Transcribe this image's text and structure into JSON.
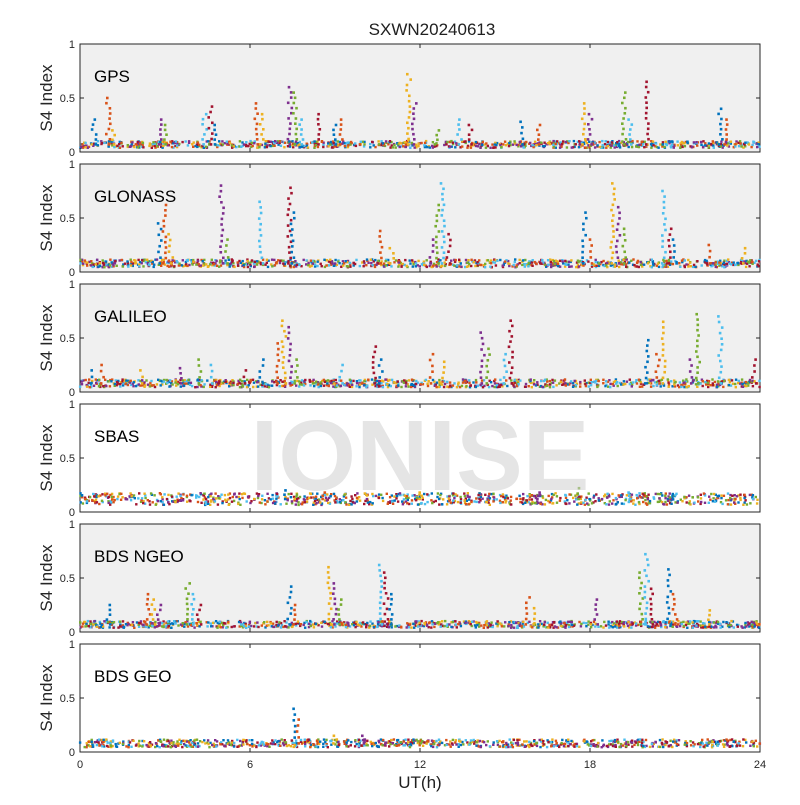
{
  "figure": {
    "title": "SXWN20240613",
    "xlabel": "UT(h)",
    "watermark": "IONISE",
    "colors": [
      "#0072BD",
      "#D95319",
      "#EDB120",
      "#7E2F8E",
      "#77AC30",
      "#4DBEEE",
      "#A2142F"
    ],
    "panel_background": "#f0f0f0"
  },
  "chart_data": [
    {
      "type": "scatter",
      "label": "GPS",
      "ylabel": "S4 Index",
      "xlim": [
        0,
        24
      ],
      "ylim": [
        0,
        1
      ],
      "xticks": [
        0,
        6,
        12,
        18,
        24
      ],
      "yticks": [
        0,
        0.5,
        1
      ],
      "ytick_labels": [
        "0",
        "0.5",
        "1"
      ],
      "background": "#f0f0f0",
      "baseline": 0.07,
      "series": [
        {
          "x": [
            0.5,
            1.0,
            1.2,
            2.8,
            3.0,
            4.4,
            4.6,
            4.8,
            6.2,
            6.4,
            7.4,
            7.6,
            7.8,
            8.4,
            9.0,
            9.2,
            11.6,
            11.8,
            12.6,
            13.4,
            13.8,
            15.6,
            16.2,
            17.8,
            18.0,
            19.2,
            19.4,
            20.0,
            22.6,
            22.8
          ],
          "y": [
            0.3,
            0.5,
            0.2,
            0.3,
            0.25,
            0.35,
            0.42,
            0.25,
            0.45,
            0.35,
            0.6,
            0.55,
            0.3,
            0.35,
            0.25,
            0.3,
            0.72,
            0.45,
            0.2,
            0.3,
            0.25,
            0.28,
            0.25,
            0.45,
            0.35,
            0.55,
            0.3,
            0.65,
            0.4,
            0.3
          ]
        }
      ]
    },
    {
      "type": "scatter",
      "label": "GLONASS",
      "ylabel": "S4 Index",
      "xlim": [
        0,
        24
      ],
      "ylim": [
        0,
        1
      ],
      "xticks": [
        0,
        6,
        12,
        18,
        24
      ],
      "yticks": [
        0,
        0.5,
        1
      ],
      "ytick_labels": [
        "0",
        "0.5",
        "1"
      ],
      "background": "#f0f0f0",
      "baseline": 0.08,
      "series": [
        {
          "x": [
            2.8,
            3.0,
            3.2,
            5.0,
            5.2,
            6.4,
            7.4,
            7.5,
            10.6,
            11.0,
            12.4,
            12.6,
            12.8,
            13.0,
            17.8,
            18.0,
            18.8,
            19.0,
            19.2,
            20.6,
            20.8,
            21.0,
            22.2,
            23.4
          ],
          "y": [
            0.45,
            0.62,
            0.35,
            0.8,
            0.3,
            0.65,
            0.78,
            0.55,
            0.38,
            0.22,
            0.3,
            0.62,
            0.82,
            0.35,
            0.55,
            0.3,
            0.82,
            0.6,
            0.4,
            0.75,
            0.4,
            0.3,
            0.25,
            0.22
          ]
        }
      ]
    },
    {
      "type": "scatter",
      "label": "GALILEO",
      "ylabel": "S4 Index",
      "xlim": [
        0,
        24
      ],
      "ylim": [
        0,
        1
      ],
      "xticks": [
        0,
        6,
        12,
        18,
        24
      ],
      "yticks": [
        0,
        0.5,
        1
      ],
      "ytick_labels": [
        "0",
        "0.5",
        "1"
      ],
      "background": "#f0f0f0",
      "baseline": 0.08,
      "series": [
        {
          "x": [
            0.4,
            0.8,
            2.2,
            3.6,
            4.2,
            4.6,
            5.8,
            6.4,
            7.0,
            7.2,
            7.4,
            7.6,
            9.2,
            10.4,
            10.6,
            12.4,
            12.8,
            14.2,
            14.4,
            15.0,
            15.2,
            20.0,
            20.4,
            20.6,
            21.6,
            21.8,
            22.6,
            23.8
          ],
          "y": [
            0.2,
            0.25,
            0.2,
            0.22,
            0.3,
            0.25,
            0.2,
            0.3,
            0.45,
            0.66,
            0.6,
            0.3,
            0.25,
            0.42,
            0.3,
            0.35,
            0.28,
            0.55,
            0.4,
            0.35,
            0.66,
            0.48,
            0.35,
            0.65,
            0.3,
            0.72,
            0.7,
            0.3
          ]
        }
      ]
    },
    {
      "type": "scatter",
      "label": "SBAS",
      "ylabel": "S4 Index",
      "xlim": [
        0,
        24
      ],
      "ylim": [
        0,
        1
      ],
      "xticks": [
        0,
        6,
        12,
        18,
        24
      ],
      "yticks": [
        0,
        0.5,
        1
      ],
      "ytick_labels": [
        "0",
        "0.5",
        "1"
      ],
      "background": "#ffffff",
      "baseline": 0.12,
      "series": [
        {
          "x": [
            7.2,
            8.6,
            12.0,
            16.2,
            17.6,
            19.4
          ],
          "y": [
            0.2,
            0.18,
            0.18,
            0.18,
            0.22,
            0.18
          ]
        }
      ]
    },
    {
      "type": "scatter",
      "label": "BDS NGEO",
      "ylabel": "S4 Index",
      "xlim": [
        0,
        24
      ],
      "ylim": [
        0,
        1
      ],
      "xticks": [
        0,
        6,
        12,
        18,
        24
      ],
      "yticks": [
        0,
        0.5,
        1
      ],
      "ytick_labels": [
        "0",
        "0.5",
        "1"
      ],
      "background": "#f0f0f0",
      "baseline": 0.07,
      "series": [
        {
          "x": [
            1.0,
            2.4,
            2.6,
            2.8,
            3.8,
            4.0,
            4.2,
            7.4,
            7.6,
            8.8,
            9.0,
            9.2,
            10.6,
            10.8,
            11.0,
            15.8,
            16.0,
            18.2,
            19.8,
            20.0,
            20.2,
            20.8,
            21.0,
            22.2
          ],
          "y": [
            0.25,
            0.35,
            0.3,
            0.25,
            0.45,
            0.35,
            0.25,
            0.42,
            0.25,
            0.6,
            0.45,
            0.3,
            0.62,
            0.55,
            0.35,
            0.32,
            0.22,
            0.3,
            0.55,
            0.72,
            0.4,
            0.58,
            0.35,
            0.2
          ]
        }
      ]
    },
    {
      "type": "scatter",
      "label": "BDS GEO",
      "ylabel": "S4 Index",
      "xlim": [
        0,
        24
      ],
      "ylim": [
        0,
        1
      ],
      "xticks": [
        0,
        6,
        12,
        18,
        24
      ],
      "yticks": [
        0,
        0.5,
        1
      ],
      "ytick_labels": [
        "0",
        "0.5",
        "1"
      ],
      "background": "#ffffff",
      "baseline": 0.08,
      "series": [
        {
          "x": [
            7.6,
            7.7,
            9.0,
            10.0
          ],
          "y": [
            0.4,
            0.3,
            0.15,
            0.15
          ]
        }
      ]
    }
  ]
}
